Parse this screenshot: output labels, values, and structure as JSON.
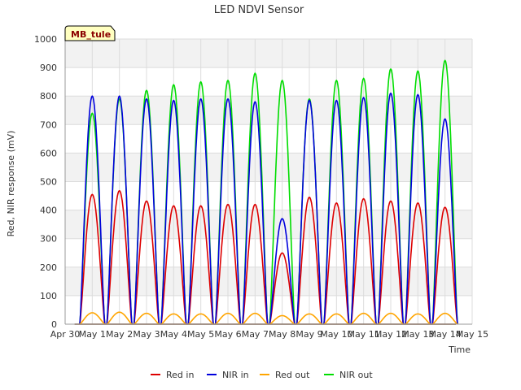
{
  "chart_data": {
    "type": "line",
    "title": "LED NDVI Sensor",
    "xlabel": "Time",
    "ylabel": "Red, NIR response (mV)",
    "tag": "MB_tule",
    "ylim": [
      0,
      1000
    ],
    "xlim": [
      0,
      15
    ],
    "yticks": [
      0,
      100,
      200,
      300,
      400,
      500,
      600,
      700,
      800,
      900,
      1000
    ],
    "xticks": [
      "Apr 30",
      "May 1",
      "May 2",
      "May 3",
      "May 4",
      "May 5",
      "May 6",
      "May 7",
      "May 8",
      "May 9",
      "May 10",
      "May 11",
      "May 12",
      "May 13",
      "May 14",
      "May 15"
    ],
    "grid": true,
    "x_unit": "days since Apr 30",
    "series": [
      {
        "name": "Red in",
        "color": "#dd0000",
        "peaks": [
          455,
          468,
          432,
          415,
          415,
          420,
          420,
          250,
          445,
          425,
          440,
          432,
          425,
          410
        ]
      },
      {
        "name": "NIR in",
        "color": "#0000dd",
        "peaks": [
          800,
          800,
          790,
          785,
          790,
          790,
          780,
          370,
          785,
          785,
          795,
          810,
          805,
          720
        ]
      },
      {
        "name": "Red out",
        "color": "#ffa500",
        "peaks": [
          40,
          42,
          38,
          36,
          36,
          38,
          38,
          30,
          36,
          36,
          38,
          38,
          36,
          38
        ]
      },
      {
        "name": "NIR out",
        "color": "#00dd00",
        "peaks": [
          740,
          790,
          820,
          840,
          850,
          855,
          880,
          855,
          790,
          855,
          862,
          895,
          888,
          925
        ]
      }
    ],
    "legend_position": "bottom"
  }
}
